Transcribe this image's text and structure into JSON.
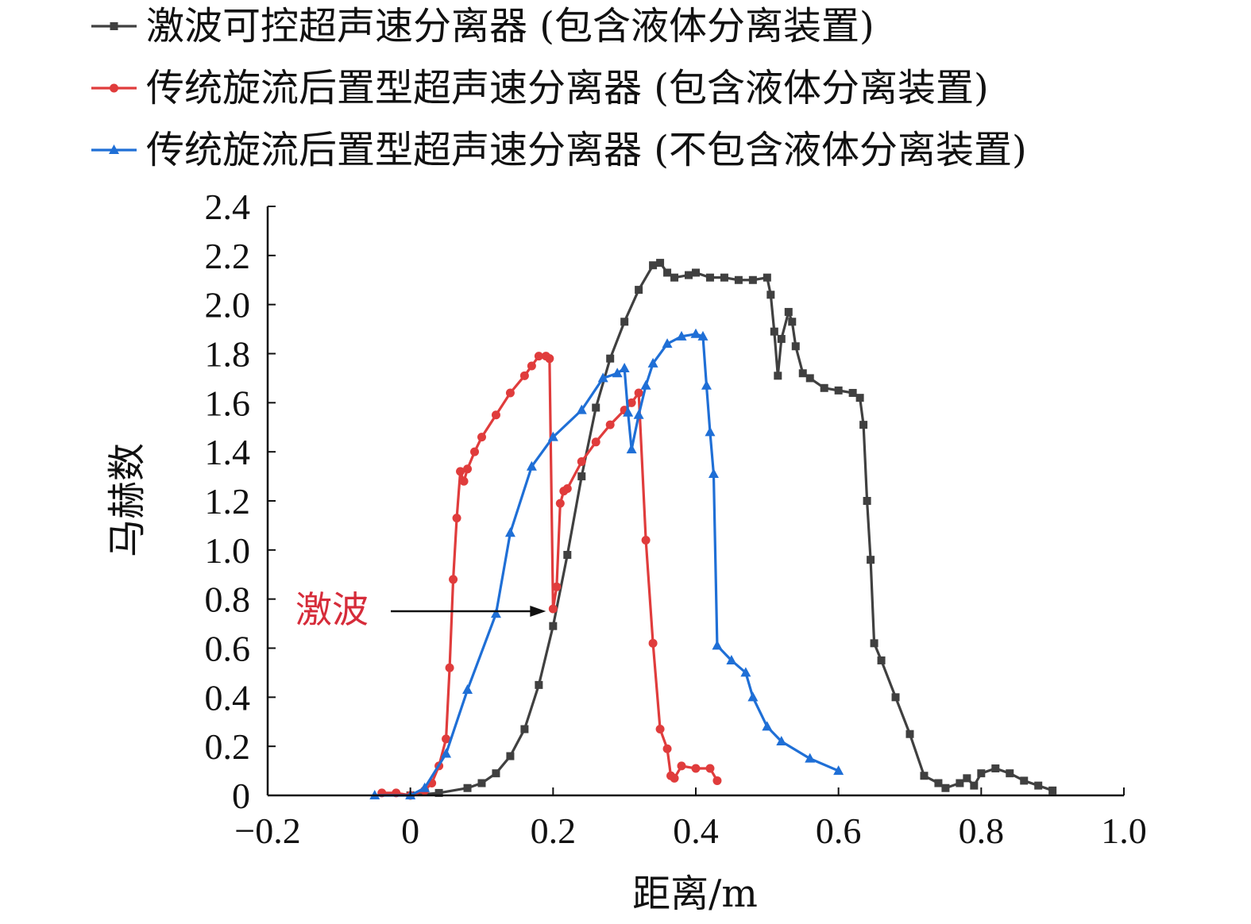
{
  "chart_data": {
    "type": "line",
    "xlabel": "距离/m",
    "ylabel": "马赫数",
    "xlim": [
      -0.2,
      1.0
    ],
    "ylim": [
      0,
      2.4
    ],
    "xticks": [
      "−0.2",
      "0",
      "0.2",
      "0.4",
      "0.6",
      "0.8",
      "1.0"
    ],
    "xtick_values": [
      -0.2,
      0,
      0.2,
      0.4,
      0.6,
      0.8,
      1.0
    ],
    "yticks": [
      "0",
      "0.2",
      "0.4",
      "0.6",
      "0.8",
      "1.0",
      "1.2",
      "1.4",
      "1.6",
      "1.8",
      "2.0",
      "2.2",
      "2.4"
    ],
    "ytick_values": [
      0,
      0.2,
      0.4,
      0.6,
      0.8,
      1.0,
      1.2,
      1.4,
      1.6,
      1.8,
      2.0,
      2.2,
      2.4
    ],
    "grid": false,
    "legend_position": "top",
    "annotation": {
      "text": "激波",
      "color": "#d62c3a",
      "target": [
        0.19,
        0.76
      ]
    },
    "series": [
      {
        "name": "激波可控超声速分离器 (包含液体分离装置)",
        "color": "#404040",
        "marker": "square",
        "x": [
          0.0,
          0.04,
          0.08,
          0.1,
          0.12,
          0.14,
          0.16,
          0.18,
          0.2,
          0.22,
          0.24,
          0.26,
          0.28,
          0.3,
          0.32,
          0.34,
          0.35,
          0.36,
          0.37,
          0.39,
          0.4,
          0.42,
          0.44,
          0.46,
          0.48,
          0.5,
          0.505,
          0.51,
          0.515,
          0.52,
          0.53,
          0.535,
          0.54,
          0.55,
          0.56,
          0.58,
          0.6,
          0.62,
          0.63,
          0.635,
          0.64,
          0.645,
          0.65,
          0.66,
          0.68,
          0.7,
          0.72,
          0.74,
          0.75,
          0.77,
          0.78,
          0.79,
          0.8,
          0.82,
          0.84,
          0.86,
          0.88,
          0.9
        ],
        "y": [
          0.0,
          0.01,
          0.03,
          0.05,
          0.09,
          0.16,
          0.27,
          0.45,
          0.69,
          0.98,
          1.3,
          1.58,
          1.78,
          1.93,
          2.06,
          2.16,
          2.17,
          2.13,
          2.11,
          2.12,
          2.13,
          2.11,
          2.11,
          2.1,
          2.1,
          2.11,
          2.04,
          1.89,
          1.71,
          1.86,
          1.97,
          1.93,
          1.83,
          1.72,
          1.7,
          1.66,
          1.65,
          1.64,
          1.62,
          1.51,
          1.2,
          0.96,
          0.62,
          0.55,
          0.4,
          0.25,
          0.08,
          0.05,
          0.03,
          0.05,
          0.07,
          0.04,
          0.09,
          0.11,
          0.09,
          0.06,
          0.04,
          0.02
        ]
      },
      {
        "name": "传统旋流后置型超声速分离器 (包含液体分离装置)",
        "color": "#e03c3c",
        "marker": "circle",
        "x": [
          -0.04,
          -0.02,
          0.0,
          0.02,
          0.03,
          0.04,
          0.05,
          0.055,
          0.06,
          0.065,
          0.07,
          0.075,
          0.08,
          0.09,
          0.1,
          0.12,
          0.14,
          0.16,
          0.17,
          0.18,
          0.19,
          0.195,
          0.2,
          0.205,
          0.21,
          0.215,
          0.22,
          0.24,
          0.26,
          0.28,
          0.3,
          0.31,
          0.32,
          0.33,
          0.34,
          0.35,
          0.36,
          0.365,
          0.37,
          0.38,
          0.4,
          0.42,
          0.43
        ],
        "y": [
          0.01,
          0.01,
          0.0,
          0.02,
          0.05,
          0.12,
          0.23,
          0.52,
          0.88,
          1.13,
          1.32,
          1.28,
          1.33,
          1.4,
          1.46,
          1.55,
          1.64,
          1.71,
          1.75,
          1.79,
          1.79,
          1.78,
          0.76,
          0.85,
          1.19,
          1.24,
          1.25,
          1.36,
          1.44,
          1.51,
          1.57,
          1.6,
          1.64,
          1.04,
          0.62,
          0.27,
          0.19,
          0.08,
          0.07,
          0.12,
          0.11,
          0.11,
          0.06
        ]
      },
      {
        "name": "传统旋流后置型超声速分离器 (不包含液体分离装置)",
        "color": "#1f6fd6",
        "marker": "triangle",
        "x": [
          -0.05,
          0.0,
          0.02,
          0.05,
          0.08,
          0.12,
          0.14,
          0.17,
          0.2,
          0.24,
          0.27,
          0.29,
          0.3,
          0.305,
          0.31,
          0.32,
          0.33,
          0.34,
          0.36,
          0.38,
          0.4,
          0.41,
          0.415,
          0.42,
          0.425,
          0.43,
          0.45,
          0.47,
          0.48,
          0.5,
          0.52,
          0.56,
          0.6
        ],
        "y": [
          0.0,
          0.0,
          0.03,
          0.17,
          0.43,
          0.74,
          1.07,
          1.34,
          1.46,
          1.57,
          1.7,
          1.72,
          1.74,
          1.56,
          1.41,
          1.55,
          1.67,
          1.76,
          1.84,
          1.87,
          1.88,
          1.87,
          1.67,
          1.48,
          1.31,
          0.61,
          0.55,
          0.5,
          0.4,
          0.28,
          0.22,
          0.15,
          0.1
        ]
      }
    ]
  }
}
